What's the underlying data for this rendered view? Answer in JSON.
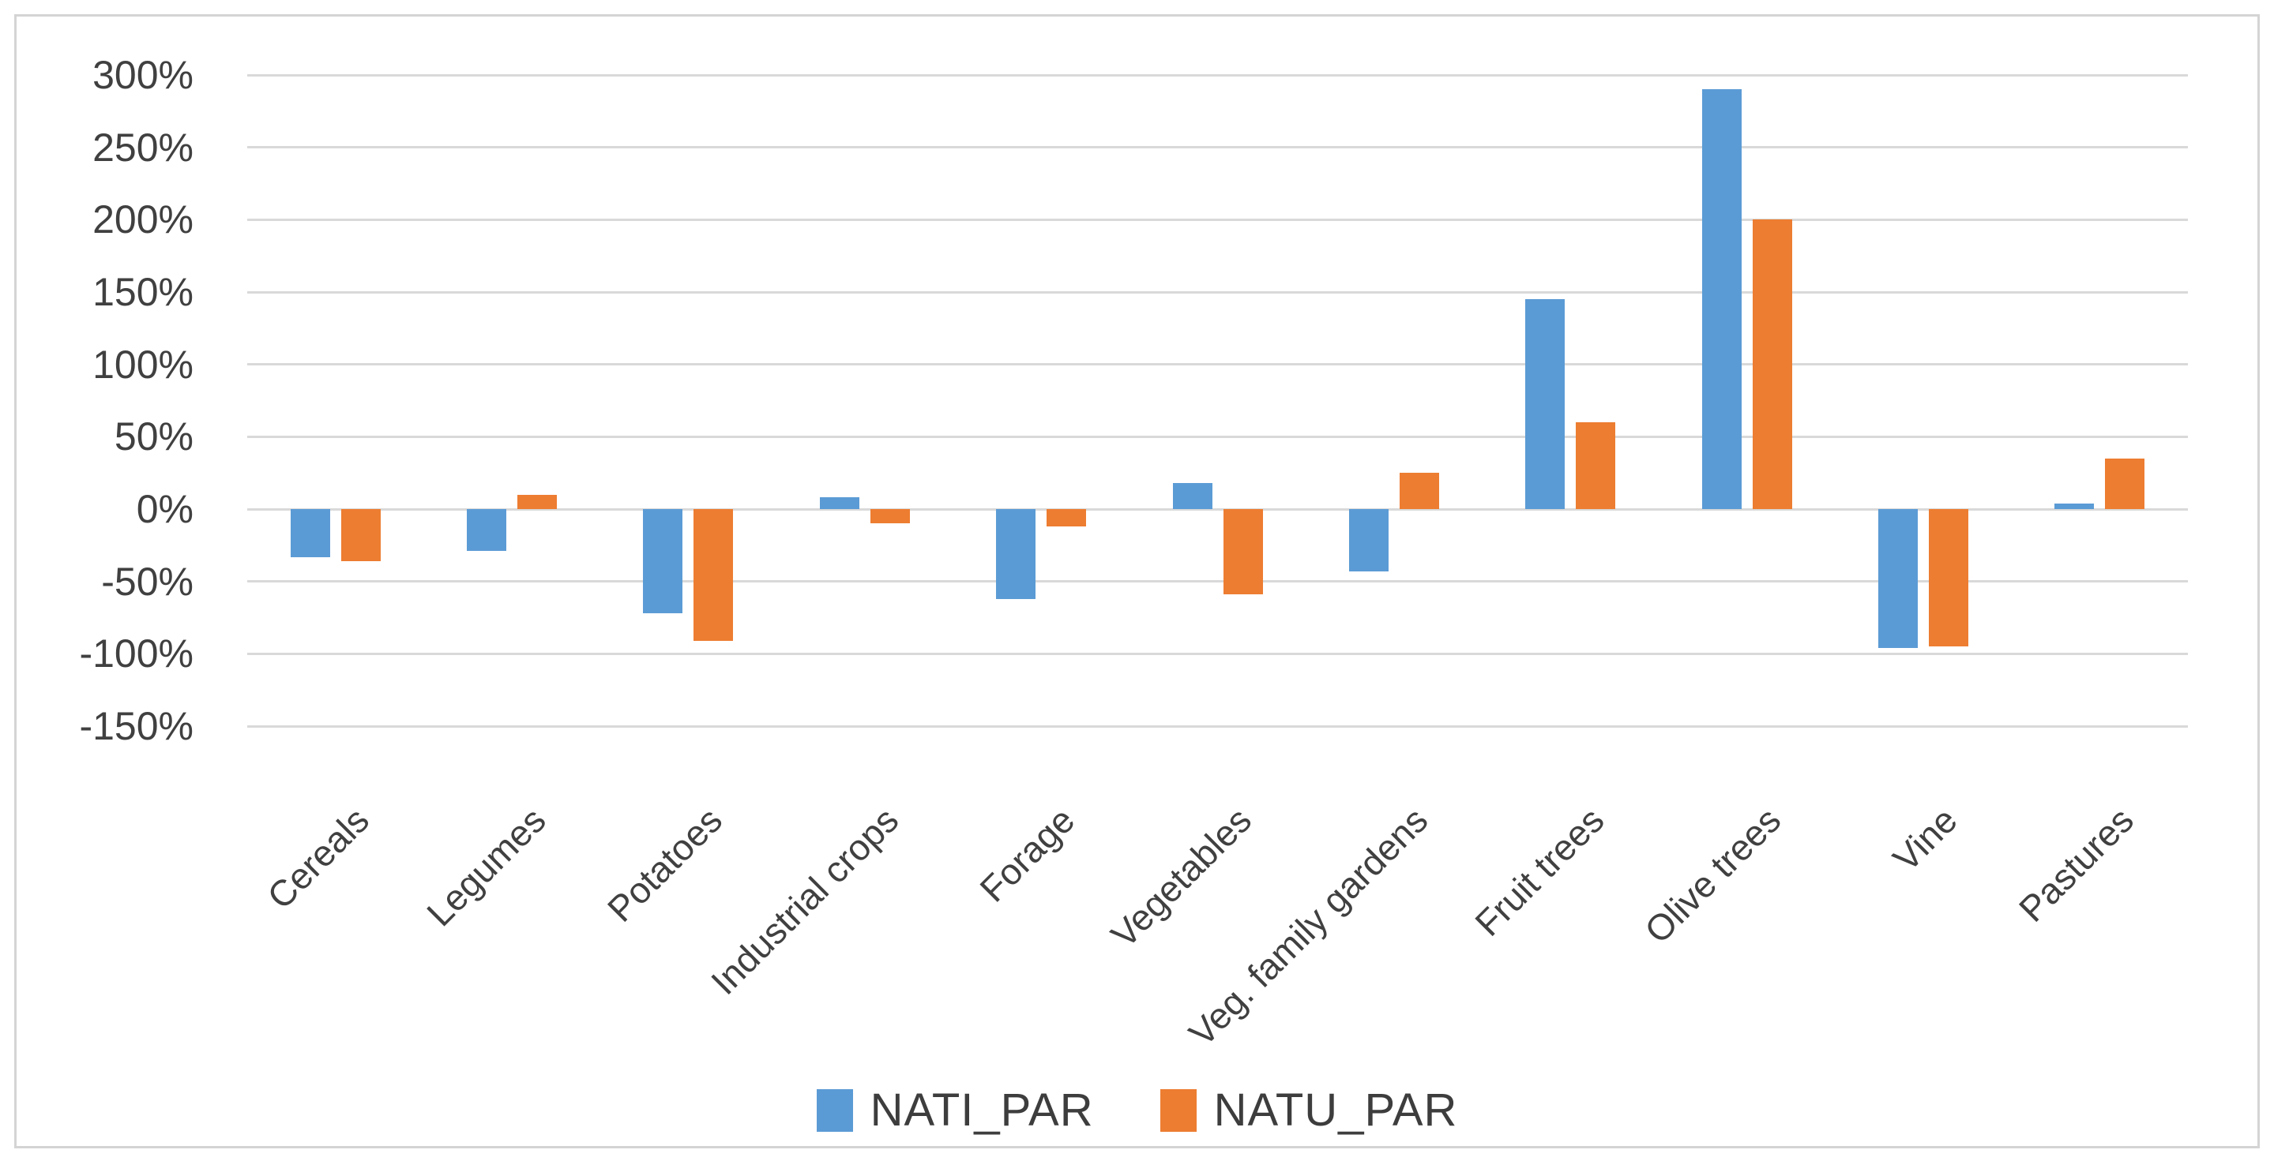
{
  "chart_data": {
    "type": "bar",
    "title": "",
    "xlabel": "",
    "ylabel": "",
    "categories": [
      "Cereals",
      "Legumes",
      "Potatoes",
      "Industrial crops",
      "Forage",
      "Vegetables",
      "Veg. family gardens",
      "Fruit trees",
      "Olive trees",
      "Vine",
      "Pastures"
    ],
    "series": [
      {
        "name": "NATI_PAR",
        "color": "#5B9BD5",
        "values": [
          -33,
          -29,
          -72,
          8,
          -62,
          18,
          -43,
          145,
          290,
          -96,
          4
        ]
      },
      {
        "name": "NATU_PAR",
        "color": "#ED7D31",
        "values": [
          -36,
          10,
          -91,
          -10,
          -12,
          -59,
          25,
          60,
          200,
          -95,
          35
        ]
      }
    ],
    "ylim": [
      -150,
      300
    ],
    "ytick_step": 50,
    "yticks": [
      "300%",
      "250%",
      "200%",
      "150%",
      "100%",
      "50%",
      "0%",
      "-50%",
      "-100%",
      "-150%"
    ],
    "ytick_values": [
      300,
      250,
      200,
      150,
      100,
      50,
      0,
      -50,
      -100,
      -150
    ],
    "grid": true,
    "legend_position": "bottom-center",
    "colors": {
      "gridline": "#D9D9D9",
      "axis_text": "#404040",
      "frame_border": "#D4D4D4",
      "background": "#FFFFFF"
    }
  }
}
